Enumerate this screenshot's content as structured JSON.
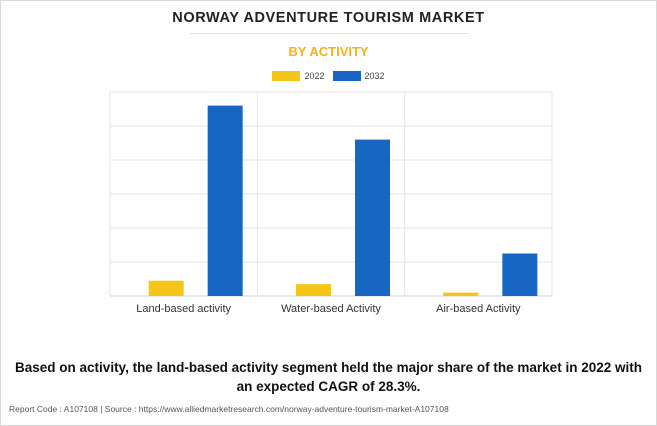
{
  "header": {
    "title": "NORWAY ADVENTURE TOURISM MARKET",
    "subtitle": "BY ACTIVITY"
  },
  "footer": {
    "summary": "Based on activity, the land-based activity segment held the major share of the market in 2022 with an expected CAGR of 28.3%.",
    "report_line": "Report Code : A107108  |  Source : https://www.alliedmarketresearch.com/norway-adventure-tourism-market-A107108"
  },
  "colors": {
    "series_2022": "#f5c518",
    "series_2032": "#1766c4",
    "grid": "#e6e6e6",
    "axis": "#cfcfcf"
  },
  "chart_data": {
    "type": "bar",
    "title": "NORWAY ADVENTURE TOURISM MARKET",
    "subtitle": "BY ACTIVITY",
    "categories": [
      "Land-based activity",
      "Water-based Activity",
      "Air-based Activity"
    ],
    "series": [
      {
        "name": "2022",
        "color": "#f5c518",
        "values": [
          4.5,
          3.5,
          1
        ]
      },
      {
        "name": "2032",
        "color": "#1766c4",
        "values": [
          56,
          46,
          12.5
        ]
      }
    ],
    "ylim": [
      0,
      60
    ],
    "yticks": [
      0,
      10,
      20,
      30,
      40,
      50,
      60
    ],
    "grid": true,
    "legend_position": "top-center",
    "xlabel": "",
    "ylabel": ""
  }
}
